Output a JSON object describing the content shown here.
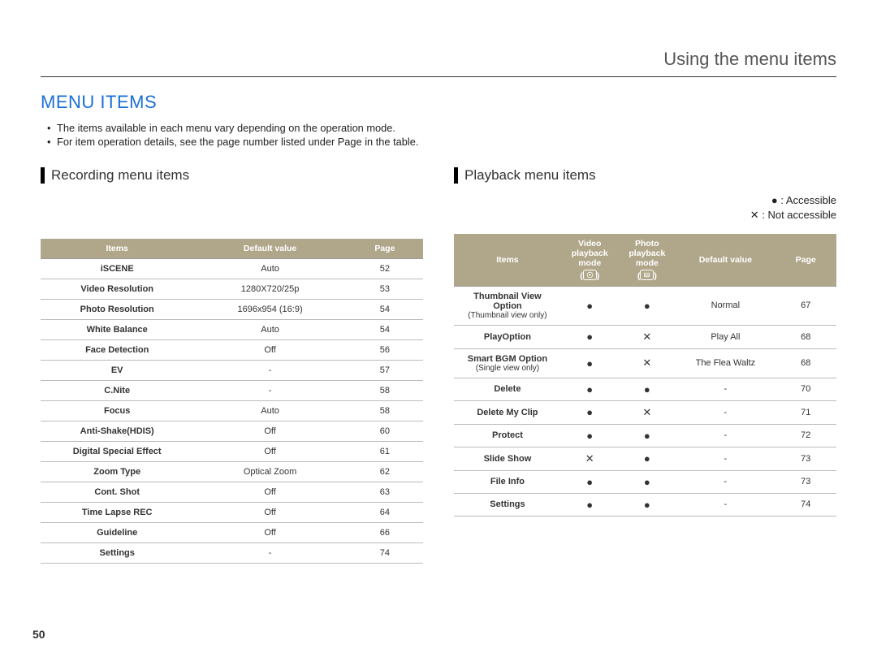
{
  "header": {
    "section_title": "Using the menu items"
  },
  "title": {
    "text": "MENU ITEMS",
    "color": "#1a6fd6"
  },
  "bullets": [
    "The items available in each menu vary depending on the operation mode.",
    "For item operation details, see the page number listed under Page in the table."
  ],
  "legend": {
    "accessible_symbol": "●",
    "accessible_label": " : Accessible",
    "not_symbol": "✕",
    "not_label": " : Not accessible"
  },
  "recording": {
    "heading": "Recording menu items",
    "columns": [
      "Items",
      "Default value",
      "Page"
    ],
    "rows": [
      {
        "item": "iSCENE",
        "default": "Auto",
        "page": "52"
      },
      {
        "item": "Video Resolution",
        "default": "1280X720/25p",
        "page": "53"
      },
      {
        "item": "Photo Resolution",
        "default": "1696x954 (16:9)",
        "page": "54"
      },
      {
        "item": "White Balance",
        "default": "Auto",
        "page": "54"
      },
      {
        "item": "Face Detection",
        "default": "Off",
        "page": "56"
      },
      {
        "item": "EV",
        "default": "-",
        "page": "57"
      },
      {
        "item": "C.Nite",
        "default": "-",
        "page": "58"
      },
      {
        "item": "Focus",
        "default": "Auto",
        "page": "58"
      },
      {
        "item": "Anti-Shake(HDIS)",
        "default": "Off",
        "page": "60"
      },
      {
        "item": "Digital Special Effect",
        "default": "Off",
        "page": "61"
      },
      {
        "item": "Zoom Type",
        "default": "Optical Zoom",
        "page": "62"
      },
      {
        "item": "Cont. Shot",
        "default": "Off",
        "page": "63"
      },
      {
        "item": "Time Lapse REC",
        "default": "Off",
        "page": "64"
      },
      {
        "item": "Guideline",
        "default": "Off",
        "page": "66"
      },
      {
        "item": "Settings",
        "default": "-",
        "page": "74"
      }
    ]
  },
  "playback": {
    "heading": "Playback menu items",
    "columns": [
      "Items",
      "Video playback mode",
      "Photo playback mode",
      "Default value",
      "Page"
    ],
    "rows": [
      {
        "item": "Thumbnail View Option",
        "sub": "(Thumbnail view only)",
        "video": "●",
        "photo": "●",
        "default": "Normal",
        "page": "67"
      },
      {
        "item": "PlayOption",
        "sub": "",
        "video": "●",
        "photo": "✕",
        "default": "Play All",
        "page": "68"
      },
      {
        "item": "Smart BGM Option",
        "sub": "(Single view only)",
        "video": "●",
        "photo": "✕",
        "default": "The Flea Waltz",
        "page": "68"
      },
      {
        "item": "Delete",
        "sub": "",
        "video": "●",
        "photo": "●",
        "default": "-",
        "page": "70"
      },
      {
        "item": "Delete My Clip",
        "sub": "",
        "video": "●",
        "photo": "✕",
        "default": "-",
        "page": "71"
      },
      {
        "item": "Protect",
        "sub": "",
        "video": "●",
        "photo": "●",
        "default": "-",
        "page": "72"
      },
      {
        "item": "Slide Show",
        "sub": "",
        "video": "✕",
        "photo": "●",
        "default": "-",
        "page": "73"
      },
      {
        "item": "File Info",
        "sub": "",
        "video": "●",
        "photo": "●",
        "default": "-",
        "page": "73"
      },
      {
        "item": "Settings",
        "sub": "",
        "video": "●",
        "photo": "●",
        "default": "-",
        "page": "74"
      }
    ]
  },
  "page_number": "50",
  "style": {
    "header_bg": "#b0a78b",
    "header_fg": "#ffffff",
    "title_color": "#1a6fd6"
  }
}
